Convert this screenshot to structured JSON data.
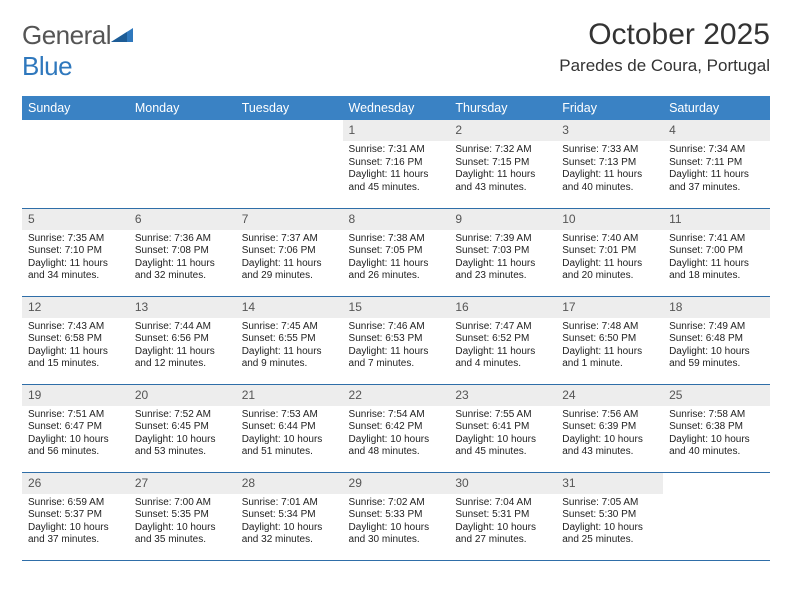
{
  "logo": {
    "word1": "General",
    "word2": "Blue"
  },
  "title": "October 2025",
  "location": "Paredes de Coura, Portugal",
  "colors": {
    "header_bg": "#3a82c4",
    "header_fg": "#ffffff",
    "rule": "#2f6ea8",
    "daybar": "#ededed",
    "logo_blue": "#2f78bd"
  },
  "weekdays": [
    "Sunday",
    "Monday",
    "Tuesday",
    "Wednesday",
    "Thursday",
    "Friday",
    "Saturday"
  ],
  "weeks": [
    [
      {
        "n": "",
        "sr": "",
        "ss": "",
        "dl": ""
      },
      {
        "n": "",
        "sr": "",
        "ss": "",
        "dl": ""
      },
      {
        "n": "",
        "sr": "",
        "ss": "",
        "dl": ""
      },
      {
        "n": "1",
        "sr": "Sunrise: 7:31 AM",
        "ss": "Sunset: 7:16 PM",
        "dl": "Daylight: 11 hours and 45 minutes."
      },
      {
        "n": "2",
        "sr": "Sunrise: 7:32 AM",
        "ss": "Sunset: 7:15 PM",
        "dl": "Daylight: 11 hours and 43 minutes."
      },
      {
        "n": "3",
        "sr": "Sunrise: 7:33 AM",
        "ss": "Sunset: 7:13 PM",
        "dl": "Daylight: 11 hours and 40 minutes."
      },
      {
        "n": "4",
        "sr": "Sunrise: 7:34 AM",
        "ss": "Sunset: 7:11 PM",
        "dl": "Daylight: 11 hours and 37 minutes."
      }
    ],
    [
      {
        "n": "5",
        "sr": "Sunrise: 7:35 AM",
        "ss": "Sunset: 7:10 PM",
        "dl": "Daylight: 11 hours and 34 minutes."
      },
      {
        "n": "6",
        "sr": "Sunrise: 7:36 AM",
        "ss": "Sunset: 7:08 PM",
        "dl": "Daylight: 11 hours and 32 minutes."
      },
      {
        "n": "7",
        "sr": "Sunrise: 7:37 AM",
        "ss": "Sunset: 7:06 PM",
        "dl": "Daylight: 11 hours and 29 minutes."
      },
      {
        "n": "8",
        "sr": "Sunrise: 7:38 AM",
        "ss": "Sunset: 7:05 PM",
        "dl": "Daylight: 11 hours and 26 minutes."
      },
      {
        "n": "9",
        "sr": "Sunrise: 7:39 AM",
        "ss": "Sunset: 7:03 PM",
        "dl": "Daylight: 11 hours and 23 minutes."
      },
      {
        "n": "10",
        "sr": "Sunrise: 7:40 AM",
        "ss": "Sunset: 7:01 PM",
        "dl": "Daylight: 11 hours and 20 minutes."
      },
      {
        "n": "11",
        "sr": "Sunrise: 7:41 AM",
        "ss": "Sunset: 7:00 PM",
        "dl": "Daylight: 11 hours and 18 minutes."
      }
    ],
    [
      {
        "n": "12",
        "sr": "Sunrise: 7:43 AM",
        "ss": "Sunset: 6:58 PM",
        "dl": "Daylight: 11 hours and 15 minutes."
      },
      {
        "n": "13",
        "sr": "Sunrise: 7:44 AM",
        "ss": "Sunset: 6:56 PM",
        "dl": "Daylight: 11 hours and 12 minutes."
      },
      {
        "n": "14",
        "sr": "Sunrise: 7:45 AM",
        "ss": "Sunset: 6:55 PM",
        "dl": "Daylight: 11 hours and 9 minutes."
      },
      {
        "n": "15",
        "sr": "Sunrise: 7:46 AM",
        "ss": "Sunset: 6:53 PM",
        "dl": "Daylight: 11 hours and 7 minutes."
      },
      {
        "n": "16",
        "sr": "Sunrise: 7:47 AM",
        "ss": "Sunset: 6:52 PM",
        "dl": "Daylight: 11 hours and 4 minutes."
      },
      {
        "n": "17",
        "sr": "Sunrise: 7:48 AM",
        "ss": "Sunset: 6:50 PM",
        "dl": "Daylight: 11 hours and 1 minute."
      },
      {
        "n": "18",
        "sr": "Sunrise: 7:49 AM",
        "ss": "Sunset: 6:48 PM",
        "dl": "Daylight: 10 hours and 59 minutes."
      }
    ],
    [
      {
        "n": "19",
        "sr": "Sunrise: 7:51 AM",
        "ss": "Sunset: 6:47 PM",
        "dl": "Daylight: 10 hours and 56 minutes."
      },
      {
        "n": "20",
        "sr": "Sunrise: 7:52 AM",
        "ss": "Sunset: 6:45 PM",
        "dl": "Daylight: 10 hours and 53 minutes."
      },
      {
        "n": "21",
        "sr": "Sunrise: 7:53 AM",
        "ss": "Sunset: 6:44 PM",
        "dl": "Daylight: 10 hours and 51 minutes."
      },
      {
        "n": "22",
        "sr": "Sunrise: 7:54 AM",
        "ss": "Sunset: 6:42 PM",
        "dl": "Daylight: 10 hours and 48 minutes."
      },
      {
        "n": "23",
        "sr": "Sunrise: 7:55 AM",
        "ss": "Sunset: 6:41 PM",
        "dl": "Daylight: 10 hours and 45 minutes."
      },
      {
        "n": "24",
        "sr": "Sunrise: 7:56 AM",
        "ss": "Sunset: 6:39 PM",
        "dl": "Daylight: 10 hours and 43 minutes."
      },
      {
        "n": "25",
        "sr": "Sunrise: 7:58 AM",
        "ss": "Sunset: 6:38 PM",
        "dl": "Daylight: 10 hours and 40 minutes."
      }
    ],
    [
      {
        "n": "26",
        "sr": "Sunrise: 6:59 AM",
        "ss": "Sunset: 5:37 PM",
        "dl": "Daylight: 10 hours and 37 minutes."
      },
      {
        "n": "27",
        "sr": "Sunrise: 7:00 AM",
        "ss": "Sunset: 5:35 PM",
        "dl": "Daylight: 10 hours and 35 minutes."
      },
      {
        "n": "28",
        "sr": "Sunrise: 7:01 AM",
        "ss": "Sunset: 5:34 PM",
        "dl": "Daylight: 10 hours and 32 minutes."
      },
      {
        "n": "29",
        "sr": "Sunrise: 7:02 AM",
        "ss": "Sunset: 5:33 PM",
        "dl": "Daylight: 10 hours and 30 minutes."
      },
      {
        "n": "30",
        "sr": "Sunrise: 7:04 AM",
        "ss": "Sunset: 5:31 PM",
        "dl": "Daylight: 10 hours and 27 minutes."
      },
      {
        "n": "31",
        "sr": "Sunrise: 7:05 AM",
        "ss": "Sunset: 5:30 PM",
        "dl": "Daylight: 10 hours and 25 minutes."
      },
      {
        "n": "",
        "sr": "",
        "ss": "",
        "dl": ""
      }
    ]
  ]
}
